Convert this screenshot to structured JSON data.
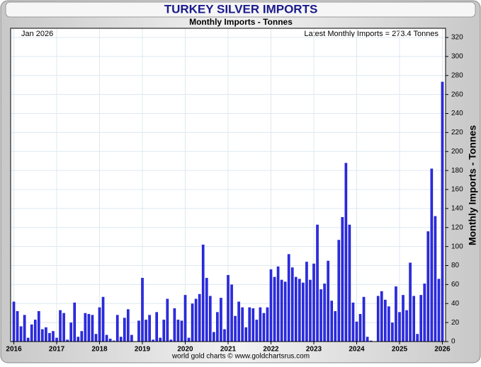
{
  "chart_data": {
    "type": "bar",
    "title": "TURKEY SILVER IMPORTS",
    "subtitle": "Monthly Imports - Tonnes",
    "y_label": "Monthly Imports - Tonnes",
    "annotations": [
      "Jan 2026",
      "Latest Monthly Imports = 273.4 Tonnes"
    ],
    "footer": "world gold charts © www.goldchartsrus.com",
    "color": "#1414e0",
    "grid": true,
    "categories": [
      "2016",
      null,
      null,
      null,
      null,
      null,
      null,
      null,
      null,
      null,
      null,
      null,
      "2017",
      null,
      null,
      null,
      null,
      null,
      null,
      null,
      null,
      null,
      null,
      null,
      "2018",
      null,
      null,
      null,
      null,
      null,
      null,
      null,
      null,
      null,
      null,
      null,
      "2019",
      null,
      null,
      null,
      null,
      null,
      null,
      null,
      null,
      null,
      null,
      null,
      "2020",
      null,
      null,
      null,
      null,
      null,
      null,
      null,
      null,
      null,
      null,
      null,
      "2021",
      null,
      null,
      null,
      null,
      null,
      null,
      null,
      null,
      null,
      null,
      null,
      "2022",
      null,
      null,
      null,
      null,
      null,
      null,
      null,
      null,
      null,
      null,
      null,
      "2023",
      null,
      null,
      null,
      null,
      null,
      null,
      null,
      null,
      null,
      null,
      null,
      "2024",
      null,
      null,
      null,
      null,
      null,
      null,
      null,
      null,
      null,
      null,
      null,
      "2025",
      null,
      null,
      null,
      null,
      null,
      null,
      null,
      null,
      null,
      null,
      null,
      "2026"
    ],
    "values": [
      42,
      32,
      16,
      28,
      4,
      18,
      23,
      32,
      13,
      15,
      9,
      11,
      4,
      33,
      30,
      2,
      20,
      41,
      5,
      11,
      30,
      29,
      28,
      8,
      36,
      47,
      7,
      3,
      1,
      28,
      5,
      25,
      34,
      7,
      0,
      22,
      67,
      23,
      28,
      2,
      31,
      4,
      23,
      45,
      2,
      35,
      23,
      22,
      49,
      4,
      40,
      45,
      50,
      102,
      67,
      48,
      10,
      31,
      46,
      13,
      70,
      60,
      27,
      42,
      36,
      15,
      36,
      35,
      23,
      36,
      30,
      36,
      76,
      68,
      79,
      65,
      63,
      92,
      78,
      68,
      66,
      62,
      84,
      65,
      82,
      123,
      55,
      61,
      85,
      43,
      32,
      107,
      131,
      188,
      123,
      41,
      21,
      29,
      47,
      5,
      1,
      0,
      48,
      53,
      44,
      37,
      20,
      58,
      31,
      49,
      33,
      83,
      48,
      8,
      49,
      61,
      116,
      182,
      132,
      66,
      273.4
    ],
    "ylim": [
      0,
      320
    ],
    "yticks": [
      0,
      20,
      40,
      60,
      80,
      100,
      120,
      140,
      160,
      180,
      200,
      220,
      240,
      260,
      280,
      300,
      320
    ]
  }
}
